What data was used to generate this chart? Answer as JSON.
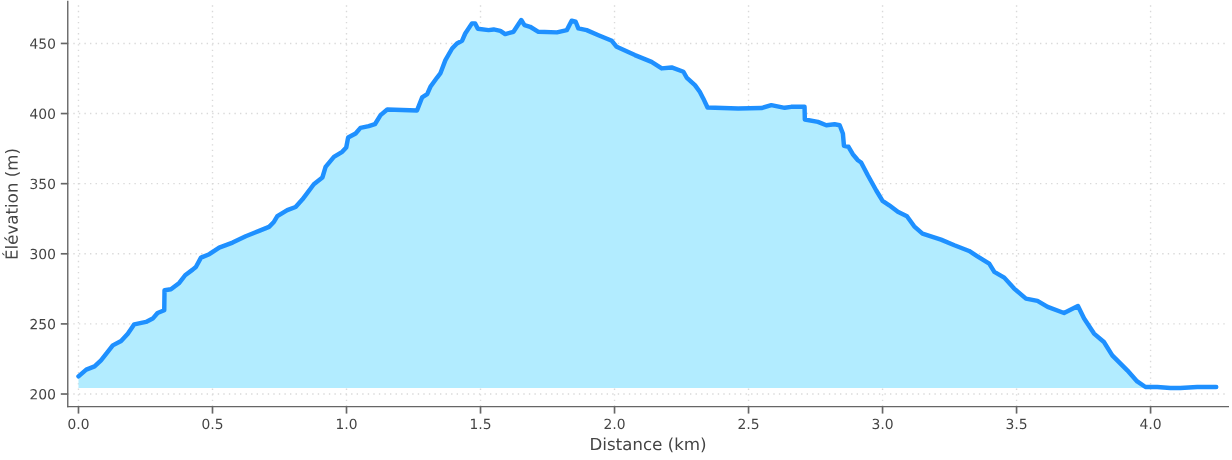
{
  "chart_data": {
    "type": "area",
    "xlabel": "Distance (km)",
    "ylabel": "Élévation (m)",
    "x": [
      0,
      0.029,
      0.06,
      0.084,
      0.109,
      0.128,
      0.159,
      0.184,
      0.208,
      0.252,
      0.277,
      0.295,
      0.32,
      0.321,
      0.345,
      0.376,
      0.398,
      0.426,
      0.438,
      0.457,
      0.488,
      0.525,
      0.575,
      0.624,
      0.674,
      0.711,
      0.729,
      0.742,
      0.779,
      0.81,
      0.835,
      0.854,
      0.878,
      0.91,
      0.922,
      0.953,
      0.984,
      0.999,
      1.006,
      1.034,
      1.052,
      1.083,
      1.106,
      1.127,
      1.152,
      1.263,
      1.282,
      1.301,
      1.313,
      1.338,
      1.35,
      1.369,
      1.394,
      1.412,
      1.431,
      1.443,
      1.468,
      1.48,
      1.49,
      1.53,
      1.549,
      1.574,
      1.592,
      1.623,
      1.642,
      1.652,
      1.664,
      1.685,
      1.716,
      1.785,
      1.822,
      1.84,
      1.855,
      1.865,
      1.896,
      1.94,
      1.99,
      2.008,
      2.076,
      2.138,
      2.176,
      2.213,
      2.257,
      2.269,
      2.3,
      2.318,
      2.331,
      2.347,
      2.461,
      2.548,
      2.585,
      2.635,
      2.659,
      2.709,
      2.71,
      2.759,
      2.79,
      2.821,
      2.84,
      2.852,
      2.856,
      2.873,
      2.889,
      2.908,
      2.92,
      2.945,
      2.976,
      3.0,
      3.025,
      3.057,
      3.091,
      3.118,
      3.149,
      3.218,
      3.268,
      3.323,
      3.354,
      3.398,
      3.417,
      3.454,
      3.491,
      3.535,
      3.578,
      3.616,
      3.677,
      3.729,
      3.752,
      3.789,
      3.826,
      3.857,
      3.913,
      3.95,
      3.981,
      4.025,
      4.074,
      4.111,
      4.174,
      4.245
    ],
    "series": [
      {
        "color": "#1e90ff",
        "values": [
          212.6,
          217.4,
          219.7,
          224,
          230,
          234.7,
          237.8,
          243,
          249.7,
          251.4,
          253.8,
          257.8,
          259.7,
          274,
          274.7,
          279.2,
          284.7,
          288.7,
          290.6,
          297.3,
          299.7,
          304.4,
          308,
          312.5,
          316.3,
          319.2,
          322.7,
          326.8,
          331.1,
          333.4,
          338.7,
          343.4,
          349.6,
          354.4,
          362,
          369.1,
          372.7,
          375.8,
          382.9,
          385.8,
          389.8,
          391,
          392.4,
          398.9,
          402.9,
          402.2,
          411.5,
          413.8,
          419.1,
          425.7,
          428.6,
          438.1,
          446.4,
          450,
          451.9,
          457.1,
          464.3,
          464.3,
          460.5,
          459.5,
          460,
          459,
          456.7,
          458.3,
          463.8,
          466.7,
          463.1,
          461.9,
          458.3,
          457.9,
          459.5,
          466.2,
          465.5,
          460.7,
          459.5,
          455.9,
          451.9,
          447.6,
          441.7,
          436.9,
          432.2,
          432.9,
          429.8,
          425.7,
          420.3,
          415.5,
          410.8,
          404.3,
          403.6,
          403.9,
          406,
          404.1,
          404.8,
          404.8,
          395.8,
          394.1,
          391.7,
          392.4,
          391.7,
          385.8,
          377,
          376.3,
          371,
          366.7,
          365.1,
          356,
          345.3,
          337.7,
          334.6,
          329.9,
          326.8,
          319.6,
          314.4,
          310.1,
          306.1,
          302,
          298.2,
          293,
          287.1,
          283,
          275.2,
          268,
          266.4,
          262.1,
          257.8,
          262.8,
          253.8,
          243.1,
          237.1,
          227.6,
          216.9,
          209,
          205,
          205,
          204.3,
          204.3,
          205,
          205
        ]
      }
    ],
    "xlim": [
      -0.04,
      4.29
    ],
    "ylim": [
      191,
      480
    ],
    "xticks": [
      {
        "value": 0,
        "label": "0.0"
      },
      0.5,
      {
        "value": 1,
        "label": "1.0"
      },
      1.5,
      {
        "value": 2,
        "label": "2.0"
      },
      2.5,
      {
        "value": 3,
        "label": "3.0"
      },
      3.5,
      {
        "value": 4,
        "label": "4.0"
      }
    ],
    "yticks": [
      200,
      250,
      300,
      350,
      400,
      450
    ],
    "grid": true
  }
}
